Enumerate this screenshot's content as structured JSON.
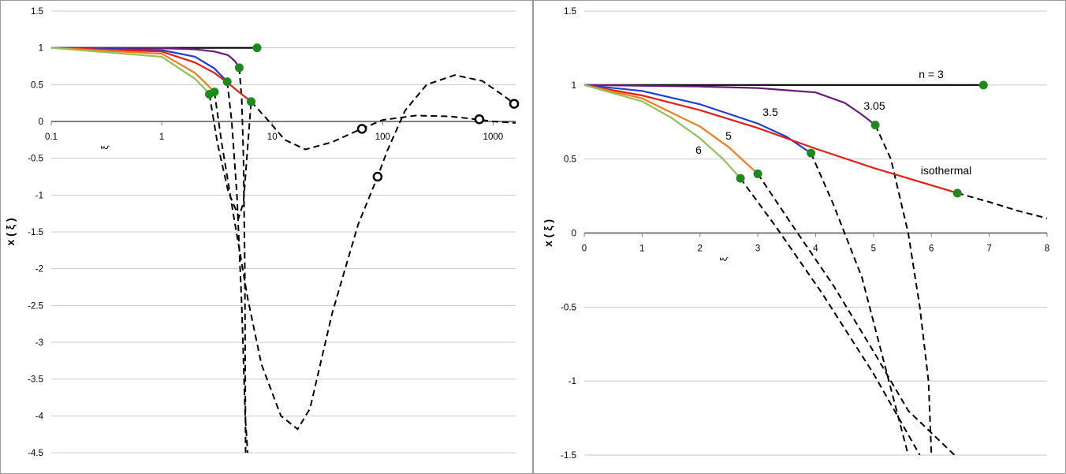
{
  "chart_data": [
    {
      "type": "line",
      "xscale": "log",
      "xlim": [
        0.1,
        1600
      ],
      "ylim": [
        -4.5,
        1.5
      ],
      "yticks": [
        "1.5",
        "1",
        "0.5",
        "0",
        "-0.5",
        "-1",
        "-1.5",
        "-2",
        "-2.5",
        "-3",
        "-3.5",
        "-4",
        "-4.5"
      ],
      "xticks": [
        "0.1",
        "1",
        "10",
        "100",
        "1000"
      ],
      "xlabel": "ξ",
      "ylabel": "x ( ξ )",
      "grid": true,
      "series": [
        {
          "color": "#000000",
          "style": "solid",
          "points": [
            [
              0.1,
              1
            ],
            [
              7.3,
              1
            ]
          ]
        },
        {
          "color": "#6a1b7a",
          "style": "solid",
          "points": [
            [
              0.1,
              1
            ],
            [
              1,
              0.995
            ],
            [
              2,
              0.98
            ],
            [
              3,
              0.95
            ],
            [
              4,
              0.9
            ],
            [
              4.6,
              0.82
            ],
            [
              5.03,
              0.73
            ]
          ]
        },
        {
          "color": "#1f3fd6",
          "style": "solid",
          "points": [
            [
              0.1,
              1
            ],
            [
              1,
              0.97
            ],
            [
              2,
              0.88
            ],
            [
              3,
              0.72
            ],
            [
              3.92,
              0.54
            ]
          ]
        },
        {
          "color": "#e32017",
          "style": "solid",
          "points": [
            [
              0.1,
              1
            ],
            [
              1,
              0.95
            ],
            [
              2,
              0.8
            ],
            [
              3,
              0.66
            ],
            [
              4,
              0.52
            ],
            [
              5,
              0.4
            ],
            [
              6.45,
              0.27
            ]
          ]
        },
        {
          "color": "#f07c1c",
          "style": "solid",
          "points": [
            [
              0.1,
              1
            ],
            [
              1,
              0.92
            ],
            [
              2,
              0.66
            ],
            [
              2.5,
              0.52
            ],
            [
              3.0,
              0.4
            ]
          ]
        },
        {
          "color": "#92c05b",
          "style": "solid",
          "points": [
            [
              0.1,
              1
            ],
            [
              1,
              0.88
            ],
            [
              2,
              0.58
            ],
            [
              2.4,
              0.46
            ],
            [
              2.7,
              0.37
            ]
          ]
        }
      ],
      "dashed": [
        {
          "points": [
            [
              5.03,
              0.73
            ],
            [
              5.3,
              0.3
            ],
            [
              5.5,
              -0.5
            ],
            [
              5.65,
              -2
            ],
            [
              5.75,
              -4.5
            ]
          ]
        },
        {
          "points": [
            [
              3.92,
              0.54
            ],
            [
              4.3,
              0
            ],
            [
              4.8,
              -1
            ],
            [
              5.3,
              -2.5
            ],
            [
              5.7,
              -4
            ],
            [
              6,
              -4.5
            ]
          ]
        },
        {
          "points": [
            [
              3.0,
              0.4
            ],
            [
              3.5,
              -0.3
            ],
            [
              4.5,
              -1.3
            ],
            [
              6,
              -2.4
            ],
            [
              8,
              -3.3
            ],
            [
              12,
              -4
            ],
            [
              17,
              -4.18
            ],
            [
              22,
              -3.9
            ],
            [
              35,
              -2.6
            ],
            [
              60,
              -1.4
            ],
            [
              90,
              -0.75
            ],
            [
              110,
              -0.4
            ],
            [
              160,
              0.15
            ],
            [
              250,
              0.5
            ],
            [
              450,
              0.63
            ],
            [
              800,
              0.55
            ],
            [
              1300,
              0.33
            ],
            [
              1600,
              0.22
            ]
          ]
        },
        {
          "points": [
            [
              2.7,
              0.37
            ],
            [
              3.2,
              -0.3
            ],
            [
              4,
              -0.95
            ],
            [
              5,
              -1.3
            ],
            [
              5.5,
              -1.1
            ],
            [
              6.45,
              0.27
            ]
          ]
        },
        {
          "points": [
            [
              6.45,
              0.27
            ],
            [
              9,
              0.03
            ],
            [
              13,
              -0.25
            ],
            [
              20,
              -0.38
            ],
            [
              35,
              -0.28
            ],
            [
              60,
              -0.12
            ],
            [
              100,
              0.02
            ],
            [
              200,
              0.08
            ],
            [
              400,
              0.07
            ],
            [
              700,
              0.03
            ],
            [
              1000,
              0.0
            ],
            [
              1600,
              -0.02
            ]
          ]
        }
      ],
      "filled_markers": [
        [
          7.3,
          1
        ],
        [
          5.03,
          0.73
        ],
        [
          3.92,
          0.54
        ],
        [
          6.45,
          0.27
        ],
        [
          3.0,
          0.4
        ],
        [
          2.7,
          0.37
        ]
      ],
      "open_markers": [
        [
          65,
          -0.1
        ],
        [
          90,
          -0.75
        ],
        [
          750,
          0.03
        ],
        [
          1550,
          0.24
        ]
      ]
    },
    {
      "type": "line",
      "xlim": [
        0,
        8
      ],
      "ylim": [
        -1.5,
        1.5
      ],
      "yticks": [
        "1.5",
        "1",
        "0.5",
        "0",
        "-0.5",
        "-1",
        "-1.5"
      ],
      "xticks": [
        "0",
        "1",
        "2",
        "3",
        "4",
        "5",
        "6",
        "7",
        "8"
      ],
      "xlabel": "ξ",
      "ylabel": "x ( ξ )",
      "grid": true,
      "labels": [
        "n = 3",
        "3.05",
        "3.5",
        "isothermal",
        "5",
        "6"
      ],
      "series": [
        {
          "name": "n = 3",
          "color": "#000000",
          "style": "solid",
          "points": [
            [
              0,
              1
            ],
            [
              6.9,
              1
            ]
          ]
        },
        {
          "name": "3.05",
          "color": "#6a1b7a",
          "style": "solid",
          "points": [
            [
              0,
              1
            ],
            [
              2,
              0.99
            ],
            [
              3,
              0.98
            ],
            [
              4,
              0.95
            ],
            [
              4.5,
              0.88
            ],
            [
              4.8,
              0.8
            ],
            [
              5.03,
              0.73
            ]
          ]
        },
        {
          "name": "3.5",
          "color": "#1f3fd6",
          "style": "solid",
          "points": [
            [
              0,
              1
            ],
            [
              1,
              0.96
            ],
            [
              2,
              0.87
            ],
            [
              3,
              0.74
            ],
            [
              3.5,
              0.65
            ],
            [
              3.92,
              0.54
            ]
          ]
        },
        {
          "name": "isothermal",
          "color": "#e32017",
          "style": "solid",
          "points": [
            [
              0,
              1
            ],
            [
              1,
              0.93
            ],
            [
              2,
              0.83
            ],
            [
              3,
              0.71
            ],
            [
              4,
              0.57
            ],
            [
              5,
              0.44
            ],
            [
              6.45,
              0.27
            ]
          ]
        },
        {
          "name": "5",
          "color": "#f07c1c",
          "style": "solid",
          "points": [
            [
              0,
              1
            ],
            [
              1,
              0.91
            ],
            [
              2,
              0.72
            ],
            [
              2.5,
              0.58
            ],
            [
              3.0,
              0.4
            ]
          ]
        },
        {
          "name": "6",
          "color": "#92c05b",
          "style": "solid",
          "points": [
            [
              0,
              1
            ],
            [
              1,
              0.89
            ],
            [
              1.5,
              0.78
            ],
            [
              2,
              0.64
            ],
            [
              2.4,
              0.5
            ],
            [
              2.7,
              0.37
            ]
          ]
        }
      ],
      "dashed": [
        {
          "points": [
            [
              5.03,
              0.73
            ],
            [
              5.3,
              0.5
            ],
            [
              5.6,
              0
            ],
            [
              5.8,
              -0.5
            ],
            [
              5.95,
              -1.0
            ],
            [
              6.0,
              -1.5
            ]
          ]
        },
        {
          "points": [
            [
              3.92,
              0.54
            ],
            [
              4.3,
              0.2
            ],
            [
              4.8,
              -0.3
            ],
            [
              5.2,
              -0.9
            ],
            [
              5.6,
              -1.5
            ]
          ]
        },
        {
          "points": [
            [
              6.45,
              0.27
            ],
            [
              7,
              0.21
            ],
            [
              7.5,
              0.15
            ],
            [
              8,
              0.1
            ]
          ]
        },
        {
          "points": [
            [
              3.0,
              0.4
            ],
            [
              3.6,
              0.05
            ],
            [
              4.3,
              -0.35
            ],
            [
              5,
              -0.8
            ],
            [
              5.6,
              -1.2
            ],
            [
              6.4,
              -1.5
            ]
          ]
        },
        {
          "points": [
            [
              2.7,
              0.37
            ],
            [
              3.3,
              0.05
            ],
            [
              4.1,
              -0.4
            ],
            [
              5,
              -0.95
            ],
            [
              5.8,
              -1.5
            ]
          ]
        }
      ],
      "filled_markers": [
        [
          6.9,
          1
        ],
        [
          5.03,
          0.73
        ],
        [
          3.92,
          0.54
        ],
        [
          6.45,
          0.27
        ],
        [
          3.0,
          0.4
        ],
        [
          2.7,
          0.37
        ]
      ]
    }
  ]
}
